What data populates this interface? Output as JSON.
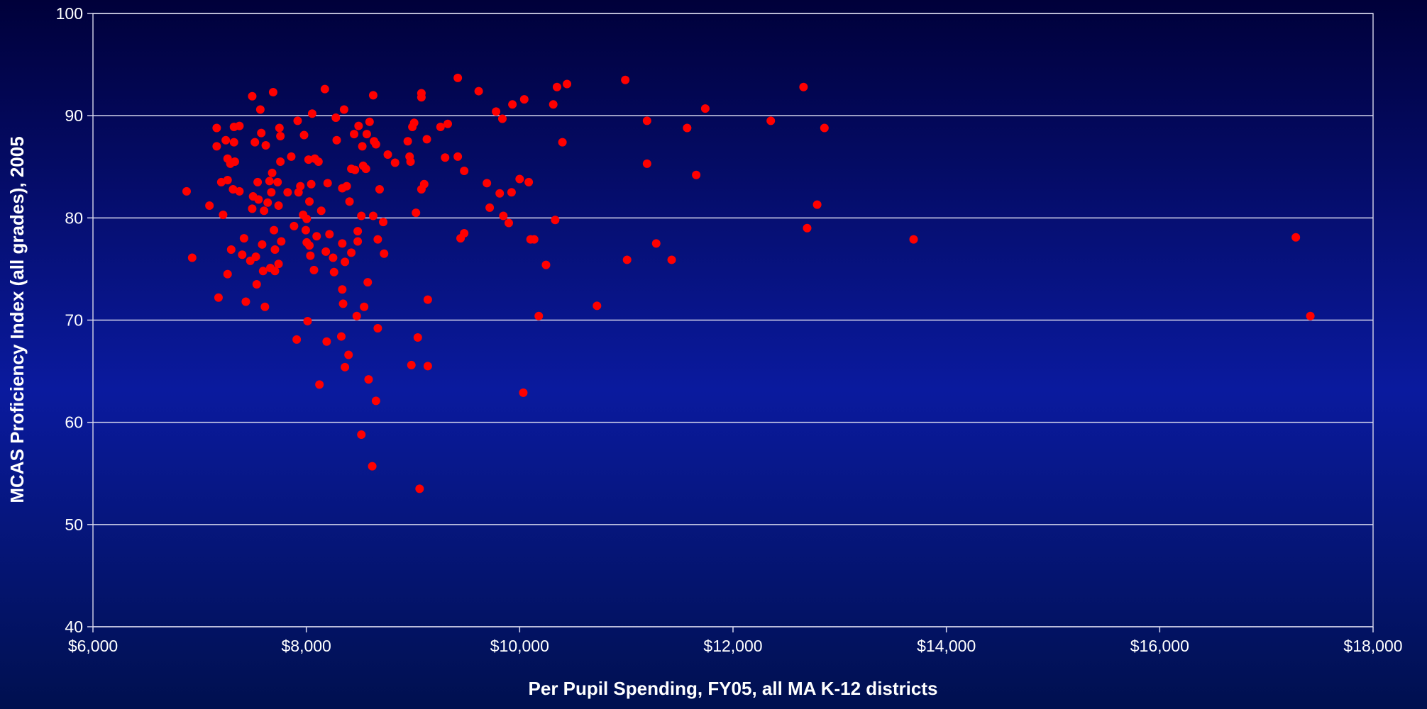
{
  "chart_data": {
    "type": "scatter",
    "xlabel": "Per Pupil Spending, FY05, all MA K-12 districts",
    "ylabel": "MCAS Proficiency Index (all grades), 2005",
    "color": "#ff0000",
    "grid": true,
    "xlim": [
      6000,
      18000
    ],
    "ylim": [
      40,
      100
    ],
    "xticks": [
      {
        "value": 6000,
        "label": "$6,000"
      },
      {
        "value": 8000,
        "label": "$8,000"
      },
      {
        "value": 10000,
        "label": "$10,000"
      },
      {
        "value": 12000,
        "label": "$12,000"
      },
      {
        "value": 14000,
        "label": "$14,000"
      },
      {
        "value": 16000,
        "label": "$16,000"
      },
      {
        "value": 18000,
        "label": "$18,000"
      }
    ],
    "yticks": [
      40,
      50,
      60,
      70,
      80,
      90,
      100
    ],
    "x": [
      6878,
      6930,
      7092,
      7160,
      7160,
      7177,
      7203,
      7220,
      7245,
      7262,
      7262,
      7262,
      7288,
      7296,
      7313,
      7322,
      7330,
      7322,
      7373,
      7373,
      7399,
      7416,
      7433,
      7475,
      7493,
      7493,
      7501,
      7518,
      7527,
      7535,
      7544,
      7552,
      7569,
      7578,
      7586,
      7595,
      7604,
      7612,
      7620,
      7638,
      7655,
      7663,
      7672,
      7680,
      7689,
      7697,
      7706,
      7706,
      7731,
      7740,
      7740,
      7748,
      7757,
      7757,
      7765,
      7825,
      7859,
      7885,
      7910,
      7919,
      7927,
      7944,
      7970,
      7979,
      7995,
      8004,
      8004,
      8012,
      8021,
      8029,
      8029,
      8038,
      8046,
      8055,
      8072,
      8080,
      8097,
      8114,
      8123,
      8140,
      8174,
      8183,
      8191,
      8200,
      8217,
      8251,
      8260,
      8277,
      8285,
      8328,
      8337,
      8337,
      8337,
      8345,
      8354,
      8362,
      8362,
      8379,
      8396,
      8405,
      8422,
      8422,
      8448,
      8456,
      8473,
      8482,
      8482,
      8490,
      8516,
      8516,
      8525,
      8533,
      8542,
      8559,
      8567,
      8576,
      8584,
      8593,
      8618,
      8627,
      8627,
      8635,
      8653,
      8653,
      8670,
      8670,
      8687,
      8721,
      8729,
      8764,
      8832,
      8951,
      8968,
      8985,
      8977,
      8994,
      9011,
      9028,
      9045,
      9062,
      9079,
      9079,
      9079,
      9105,
      9130,
      9139,
      9139,
      9258,
      9301,
      9326,
      9420,
      9420,
      9446,
      9480,
      9480,
      9616,
      9693,
      9719,
      9779,
      9813,
      9838,
      9847,
      9898,
      9924,
      9932,
      10000,
      10034,
      10043,
      10085,
      10102,
      10136,
      10179,
      10247,
      10315,
      10333,
      10350,
      10401,
      10444,
      10725,
      10990,
      11007,
      11194,
      11194,
      11280,
      11425,
      11570,
      11655,
      11740,
      12354,
      12661,
      12695,
      12789,
      12857,
      13693,
      17276,
      17412
    ],
    "values": [
      82.6,
      76.1,
      81.2,
      88.8,
      87.0,
      72.2,
      83.5,
      80.3,
      87.6,
      74.5,
      83.7,
      85.8,
      85.3,
      76.9,
      82.8,
      87.4,
      85.5,
      88.9,
      89.0,
      82.6,
      76.4,
      78.0,
      71.8,
      75.8,
      91.9,
      80.9,
      82.1,
      87.4,
      76.2,
      73.5,
      83.5,
      81.8,
      90.6,
      88.3,
      77.4,
      74.8,
      80.7,
      71.3,
      87.1,
      81.5,
      83.6,
      75.1,
      82.5,
      84.4,
      92.3,
      78.8,
      74.8,
      76.9,
      83.5,
      81.2,
      75.5,
      88.8,
      88.0,
      85.5,
      77.7,
      82.5,
      86.0,
      79.2,
      68.1,
      89.5,
      82.5,
      83.1,
      80.3,
      88.1,
      78.8,
      77.6,
      79.9,
      69.9,
      85.7,
      81.6,
      77.3,
      76.3,
      83.3,
      90.2,
      74.9,
      85.8,
      78.2,
      85.5,
      63.7,
      80.7,
      92.6,
      76.7,
      67.9,
      83.4,
      78.4,
      76.1,
      74.7,
      89.8,
      87.6,
      68.4,
      77.5,
      82.9,
      73.0,
      71.6,
      90.6,
      65.4,
      75.7,
      83.1,
      66.6,
      81.6,
      76.6,
      84.8,
      88.2,
      84.7,
      70.4,
      78.7,
      77.7,
      89.0,
      58.8,
      80.2,
      87.0,
      85.1,
      71.3,
      84.8,
      88.2,
      73.7,
      64.2,
      89.4,
      55.7,
      80.2,
      92.0,
      87.5,
      62.1,
      87.2,
      69.2,
      77.9,
      82.8,
      79.6,
      76.5,
      86.2,
      85.4,
      87.5,
      86.0,
      65.6,
      85.5,
      88.9,
      89.3,
      80.5,
      68.3,
      53.5,
      92.2,
      91.8,
      82.8,
      83.3,
      87.7,
      65.5,
      72.0,
      88.9,
      85.9,
      89.2,
      93.7,
      86.0,
      78.0,
      84.6,
      78.5,
      92.4,
      83.4,
      81.0,
      90.4,
      82.4,
      89.7,
      80.2,
      79.5,
      82.5,
      91.1,
      83.8,
      62.9,
      91.6,
      83.5,
      77.9,
      77.9,
      70.4,
      75.4,
      91.1,
      79.8,
      92.8,
      87.4,
      93.1,
      71.4,
      93.5,
      75.9,
      89.5,
      85.3,
      77.5,
      75.9,
      88.8,
      84.2,
      90.7,
      89.5,
      92.8,
      79.0,
      81.3,
      88.8,
      77.9,
      78.1,
      70.4
    ]
  }
}
